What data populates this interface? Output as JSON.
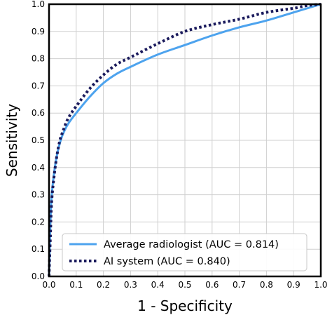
{
  "chart_data": {
    "type": "line",
    "title": "",
    "xlabel": "1 - Specificity",
    "ylabel": "Sensitivity",
    "xlim": [
      0.0,
      1.0
    ],
    "ylim": [
      0.0,
      1.0
    ],
    "xticks": [
      "0.0",
      "0.1",
      "0.2",
      "0.3",
      "0.4",
      "0.5",
      "0.6",
      "0.7",
      "0.8",
      "0.9",
      "1.0"
    ],
    "yticks": [
      "0.0",
      "0.1",
      "0.2",
      "0.3",
      "0.4",
      "0.5",
      "0.6",
      "0.7",
      "0.8",
      "0.9",
      "1.0"
    ],
    "grid": true,
    "legend_position": "bottom-right",
    "series": [
      {
        "name": "Average radiologist (AUC = 0.814)",
        "color": "#4da3ee",
        "style": "solid",
        "x": [
          0.0,
          0.005,
          0.01,
          0.02,
          0.03,
          0.04,
          0.05,
          0.07,
          0.1,
          0.15,
          0.2,
          0.25,
          0.3,
          0.4,
          0.5,
          0.6,
          0.7,
          0.8,
          0.9,
          0.95,
          1.0
        ],
        "y": [
          0.0,
          0.2,
          0.3,
          0.39,
          0.45,
          0.49,
          0.52,
          0.56,
          0.6,
          0.66,
          0.71,
          0.745,
          0.77,
          0.815,
          0.85,
          0.885,
          0.915,
          0.94,
          0.97,
          0.985,
          1.0
        ]
      },
      {
        "name": "AI system (AUC = 0.840)",
        "color": "#1a1a5c",
        "style": "dotted",
        "x": [
          0.0,
          0.005,
          0.01,
          0.02,
          0.03,
          0.04,
          0.05,
          0.07,
          0.1,
          0.15,
          0.2,
          0.25,
          0.3,
          0.4,
          0.5,
          0.6,
          0.7,
          0.8,
          0.9,
          0.95,
          1.0
        ],
        "y": [
          0.0,
          0.15,
          0.28,
          0.38,
          0.45,
          0.5,
          0.53,
          0.58,
          0.625,
          0.69,
          0.74,
          0.78,
          0.805,
          0.855,
          0.9,
          0.925,
          0.945,
          0.97,
          0.985,
          0.995,
          1.0
        ]
      }
    ]
  }
}
